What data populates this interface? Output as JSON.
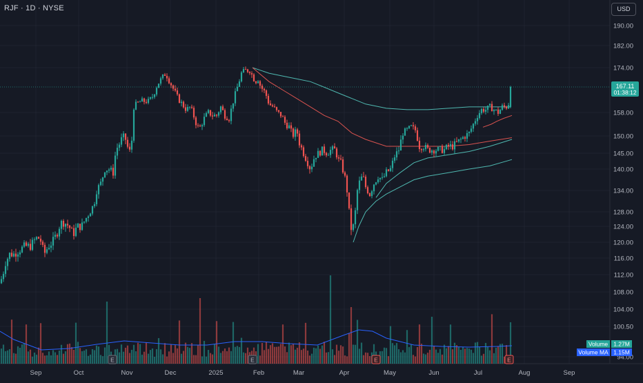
{
  "header": {
    "symbol_line": "RJF · 1D · NYSE",
    "currency": "USD"
  },
  "price_axis": {
    "ticks": [
      "190.00",
      "182.00",
      "174.00",
      "158.00",
      "150.00",
      "145.00",
      "140.00",
      "134.00",
      "128.00",
      "124.00",
      "120.00",
      "116.00",
      "112.00",
      "108.00",
      "104.00",
      "100.50",
      "94.00"
    ]
  },
  "time_axis": {
    "labels": [
      "Sep",
      "Oct",
      "Nov",
      "Dec",
      "2025",
      "Feb",
      "Mar",
      "Apr",
      "May",
      "Jun",
      "Jul",
      "Aug",
      "Sep"
    ]
  },
  "last_price": {
    "value": "167.11",
    "countdown": "01:38:12"
  },
  "volume_labels": {
    "volume": "Volume",
    "volume_value": "1.27M",
    "volume_ma": "Volume MA",
    "volume_ma_value": "1.15M"
  },
  "earnings_marker": "E",
  "colors": {
    "background": "#161a25",
    "up": "#26a69a",
    "down": "#ef5350",
    "ma_red": "#d9534f",
    "ma_teal": "#4fb8b0",
    "volume_ma": "#2962ff",
    "grid": "#1f2330",
    "axis_text": "#b2b5be"
  },
  "chart_data": {
    "type": "candlestick",
    "symbol": "RJF",
    "interval": "1D",
    "exchange": "NYSE",
    "x_labels": [
      "Sep",
      "Oct",
      "Nov",
      "Dec",
      "2025",
      "Feb",
      "Mar",
      "Apr",
      "May",
      "Jun",
      "Jul",
      "Aug",
      "Sep"
    ],
    "y_ticks": [
      190,
      182,
      174,
      158,
      150,
      145,
      140,
      134,
      128,
      124,
      120,
      116,
      112,
      108,
      104,
      100.5,
      94
    ],
    "price_path": [
      [
        0,
        110
      ],
      [
        4,
        112
      ],
      [
        8,
        115
      ],
      [
        14,
        117
      ],
      [
        20,
        117
      ],
      [
        28,
        118
      ],
      [
        36,
        119
      ],
      [
        44,
        119
      ],
      [
        52,
        121
      ],
      [
        58,
        121
      ],
      [
        64,
        117
      ],
      [
        70,
        119
      ],
      [
        76,
        120
      ],
      [
        82,
        122
      ],
      [
        88,
        125
      ],
      [
        94,
        125
      ],
      [
        100,
        124
      ],
      [
        106,
        122
      ],
      [
        112,
        124
      ],
      [
        118,
        124
      ],
      [
        124,
        126
      ],
      [
        130,
        128
      ],
      [
        136,
        130
      ],
      [
        140,
        134
      ],
      [
        146,
        136
      ],
      [
        152,
        140
      ],
      [
        158,
        140
      ],
      [
        164,
        139
      ],
      [
        168,
        146
      ],
      [
        174,
        148
      ],
      [
        178,
        150
      ],
      [
        182,
        149
      ],
      [
        186,
        146
      ],
      [
        190,
        145
      ],
      [
        194,
        160
      ],
      [
        198,
        161
      ],
      [
        204,
        162
      ],
      [
        210,
        162
      ],
      [
        216,
        162
      ],
      [
        222,
        164
      ],
      [
        228,
        168
      ],
      [
        234,
        170
      ],
      [
        240,
        172
      ],
      [
        246,
        169
      ],
      [
        252,
        166
      ],
      [
        258,
        163
      ],
      [
        264,
        161
      ],
      [
        270,
        159
      ],
      [
        276,
        160
      ],
      [
        282,
        156
      ],
      [
        286,
        153
      ],
      [
        290,
        153
      ],
      [
        296,
        156
      ],
      [
        302,
        158
      ],
      [
        308,
        157
      ],
      [
        314,
        157
      ],
      [
        320,
        160
      ],
      [
        326,
        157
      ],
      [
        332,
        156
      ],
      [
        338,
        162
      ],
      [
        344,
        167
      ],
      [
        350,
        172
      ],
      [
        356,
        173
      ],
      [
        362,
        173
      ],
      [
        366,
        171
      ],
      [
        370,
        169
      ],
      [
        374,
        170
      ],
      [
        378,
        167
      ],
      [
        382,
        166
      ],
      [
        386,
        164
      ],
      [
        390,
        161
      ],
      [
        396,
        160
      ],
      [
        402,
        158
      ],
      [
        408,
        157
      ],
      [
        414,
        154
      ],
      [
        420,
        153
      ],
      [
        424,
        150
      ],
      [
        430,
        152
      ],
      [
        434,
        148
      ],
      [
        438,
        146
      ],
      [
        444,
        143
      ],
      [
        450,
        140
      ],
      [
        456,
        144
      ],
      [
        462,
        145
      ],
      [
        468,
        146
      ],
      [
        474,
        145
      ],
      [
        480,
        146
      ],
      [
        486,
        146
      ],
      [
        490,
        143
      ],
      [
        494,
        142
      ],
      [
        498,
        139
      ],
      [
        502,
        136
      ],
      [
        506,
        128
      ],
      [
        510,
        122
      ],
      [
        514,
        126
      ],
      [
        518,
        134
      ],
      [
        522,
        137
      ],
      [
        526,
        138
      ],
      [
        530,
        135
      ],
      [
        536,
        133
      ],
      [
        542,
        136
      ],
      [
        548,
        138
      ],
      [
        554,
        137
      ],
      [
        560,
        139
      ],
      [
        566,
        140
      ],
      [
        572,
        144
      ],
      [
        578,
        146
      ],
      [
        584,
        151
      ],
      [
        590,
        152
      ],
      [
        596,
        153
      ],
      [
        602,
        152
      ],
      [
        608,
        147
      ],
      [
        614,
        147
      ],
      [
        620,
        146
      ],
      [
        626,
        146
      ],
      [
        632,
        146
      ],
      [
        638,
        146
      ],
      [
        644,
        146
      ],
      [
        650,
        147
      ],
      [
        656,
        147
      ],
      [
        662,
        148
      ],
      [
        668,
        149
      ],
      [
        674,
        150
      ],
      [
        680,
        151
      ],
      [
        686,
        154
      ],
      [
        692,
        157
      ],
      [
        698,
        159
      ],
      [
        704,
        159
      ],
      [
        710,
        160
      ],
      [
        716,
        159
      ],
      [
        722,
        158
      ],
      [
        728,
        160
      ],
      [
        732,
        160
      ],
      [
        736,
        160
      ],
      [
        742,
        167
      ]
    ],
    "moving_average_teal_upper": [
      [
        366,
        174
      ],
      [
        390,
        172
      ],
      [
        410,
        171
      ],
      [
        430,
        170
      ],
      [
        450,
        169
      ],
      [
        470,
        167
      ],
      [
        490,
        165
      ],
      [
        510,
        163
      ],
      [
        530,
        161
      ],
      [
        560,
        159.5
      ],
      [
        590,
        159
      ],
      [
        620,
        159
      ],
      [
        650,
        159.5
      ],
      [
        680,
        160
      ],
      [
        710,
        160
      ],
      [
        740,
        160
      ]
    ],
    "moving_average_red": [
      [
        366,
        174
      ],
      [
        390,
        169
      ],
      [
        410,
        166
      ],
      [
        430,
        163
      ],
      [
        450,
        160
      ],
      [
        470,
        157
      ],
      [
        490,
        155
      ],
      [
        510,
        151
      ],
      [
        530,
        149
      ],
      [
        560,
        147
      ],
      [
        590,
        147
      ],
      [
        620,
        147
      ],
      [
        650,
        147
      ],
      [
        680,
        147.5
      ],
      [
        710,
        148.5
      ],
      [
        742,
        149.5
      ]
    ],
    "moving_average_teal_middle": [
      [
        545,
        132
      ],
      [
        560,
        136
      ],
      [
        580,
        139
      ],
      [
        600,
        142
      ],
      [
        620,
        143.5
      ],
      [
        650,
        144.5
      ],
      [
        680,
        145.5
      ],
      [
        710,
        147
      ],
      [
        742,
        149
      ]
    ],
    "moving_average_teal_lower": [
      [
        512,
        120
      ],
      [
        520,
        124
      ],
      [
        530,
        128
      ],
      [
        545,
        131
      ],
      [
        560,
        133
      ],
      [
        580,
        135
      ],
      [
        600,
        137
      ],
      [
        620,
        138
      ],
      [
        650,
        139
      ],
      [
        680,
        140
      ],
      [
        710,
        141
      ],
      [
        742,
        143
      ]
    ],
    "moving_average_short_red": [
      [
        700,
        153
      ],
      [
        712,
        154
      ],
      [
        720,
        155
      ],
      [
        730,
        156
      ],
      [
        742,
        157
      ]
    ],
    "last_price": 167.11,
    "volume_panel": {
      "last_volume": "1.27M",
      "volume_ma": "1.15M"
    },
    "earnings_dates": [
      "Oct",
      "Jan",
      "Apr",
      "Jul"
    ]
  }
}
